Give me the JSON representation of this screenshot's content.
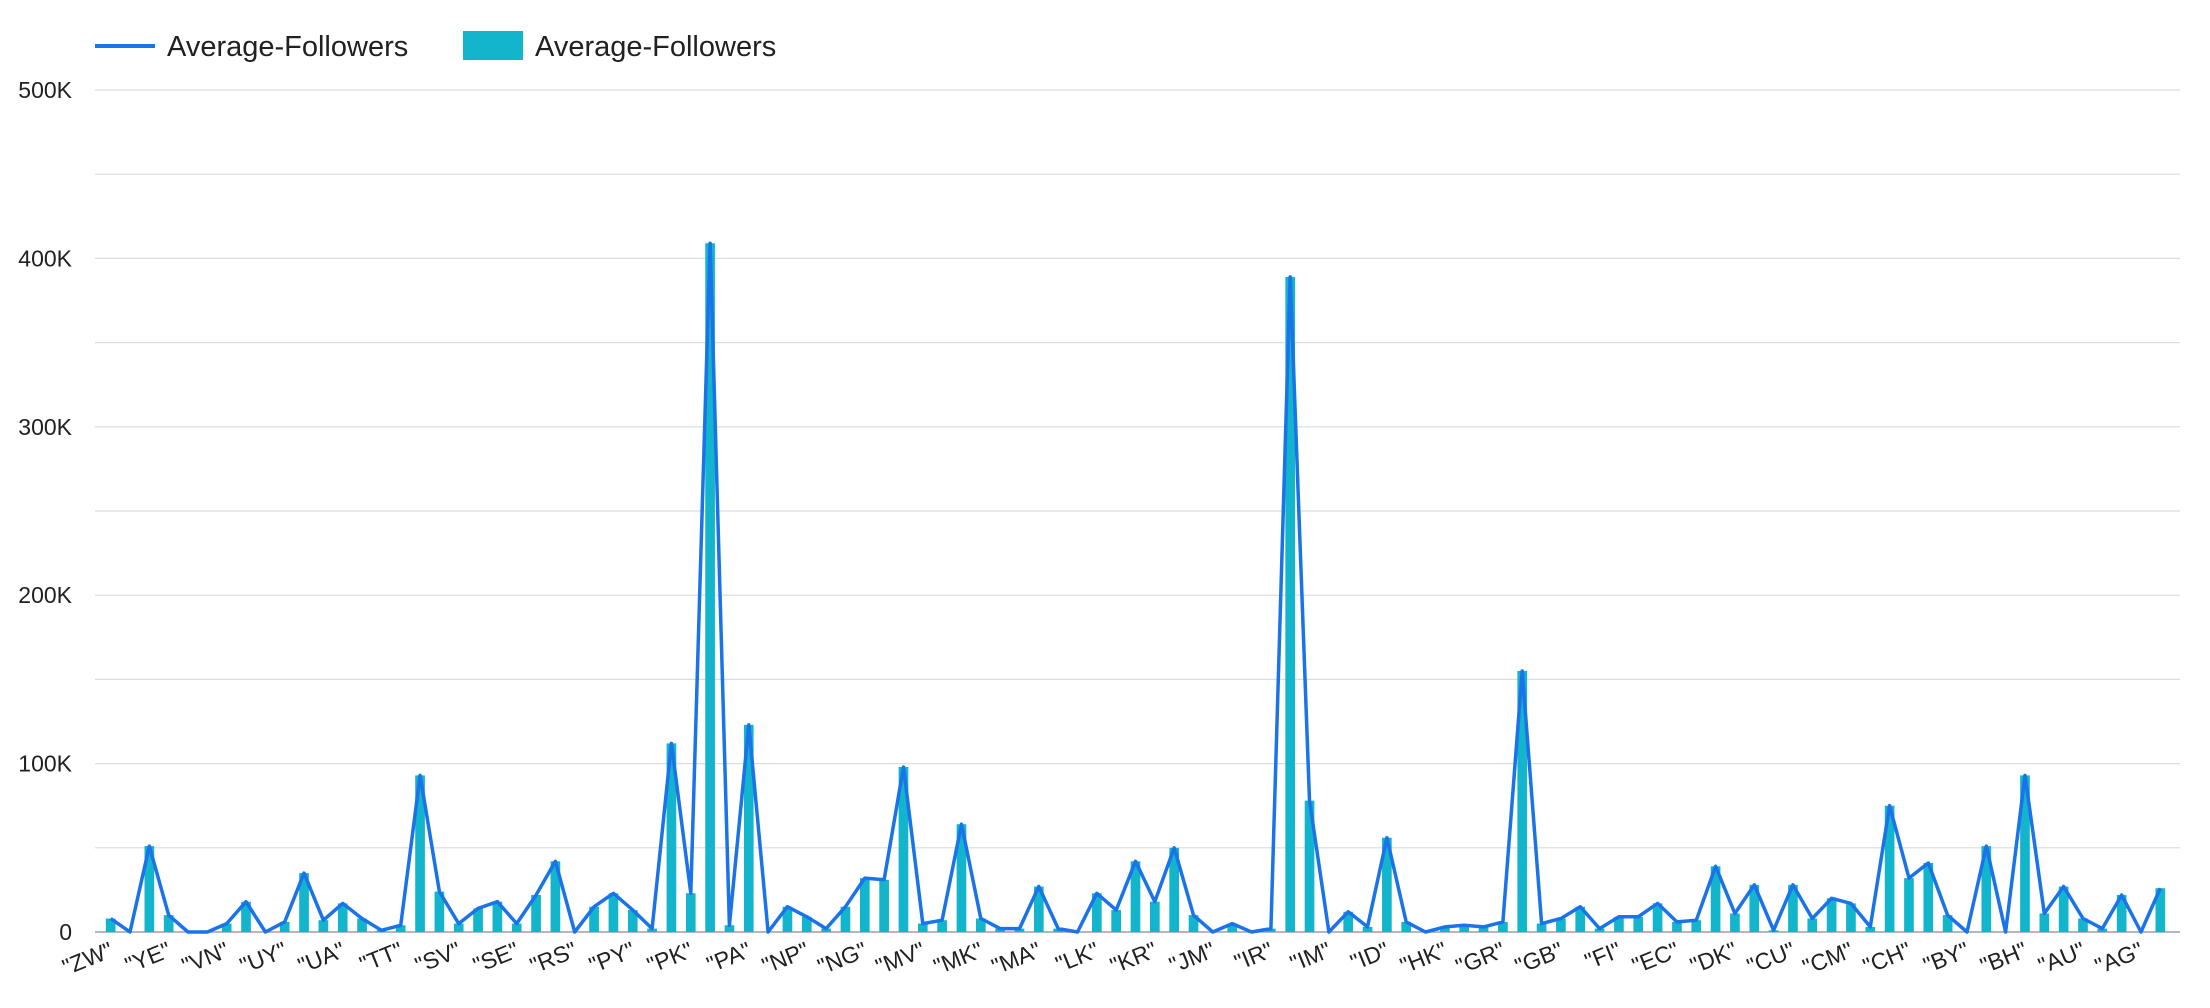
{
  "chart_data": {
    "type": "bar",
    "legend": {
      "position": "top-left",
      "entries": [
        {
          "label": "Average-Followers",
          "kind": "line"
        },
        {
          "label": "Average-Followers",
          "kind": "bar"
        }
      ]
    },
    "series": [
      {
        "name": "Average-Followers",
        "type": "line",
        "color": "#1a73e8"
      },
      {
        "name": "Average-Followers",
        "type": "bar",
        "color": "#12b5cb"
      }
    ],
    "y_axis": {
      "ticks": [
        "0",
        "100K",
        "200K",
        "300K",
        "400K",
        "500K"
      ],
      "ylim": [
        0,
        500000
      ],
      "grid": true
    },
    "x_labels_shown": [
      "\"ZW\"",
      "\"YE\"",
      "\"VN\"",
      "\"UY\"",
      "\"UA\"",
      "\"TT\"",
      "\"SV\"",
      "\"SE\"",
      "\"RS\"",
      "\"PY\"",
      "\"PK\"",
      "\"PA\"",
      "\"NP\"",
      "\"NG\"",
      "\"MV\"",
      "\"MK\"",
      "\"MA\"",
      "\"LK\"",
      "\"KR\"",
      "\"JM\"",
      "\"IR\"",
      "\"IM\"",
      "\"ID\"",
      "\"HK\"",
      "\"GR\"",
      "\"GB\"",
      "\"FI\"",
      "\"EC\"",
      "\"DK\"",
      "\"CU\"",
      "\"CM\"",
      "\"CH\"",
      "\"BY\"",
      "\"BH\"",
      "\"AU\"",
      "\"AG\""
    ],
    "values": [
      8000,
      0,
      51000,
      10000,
      0,
      0,
      5000,
      18000,
      0,
      6000,
      35000,
      7000,
      17000,
      8000,
      1000,
      4000,
      93000,
      24000,
      5000,
      14000,
      18000,
      5000,
      22000,
      42000,
      0,
      15000,
      23000,
      13000,
      2000,
      112000,
      23000,
      409000,
      4000,
      123000,
      0,
      15000,
      9000,
      2000,
      15000,
      32000,
      31000,
      98000,
      5000,
      7000,
      64000,
      8000,
      2000,
      2000,
      27000,
      2000,
      0,
      23000,
      13000,
      42000,
      18000,
      50000,
      10000,
      0,
      5000,
      0,
      2000,
      389000,
      78000,
      0,
      12000,
      3000,
      56000,
      6000,
      0,
      3000,
      4000,
      3000,
      6000,
      155000,
      5000,
      8000,
      15000,
      2000,
      9000,
      9000,
      17000,
      6000,
      7000,
      39000,
      11000,
      28000,
      1000,
      28000,
      8000,
      20000,
      17000,
      3000,
      75000,
      32000,
      41000,
      10000,
      0,
      51000,
      0,
      93000,
      11000,
      27000,
      8000,
      2000,
      22000,
      0,
      26000
    ]
  }
}
